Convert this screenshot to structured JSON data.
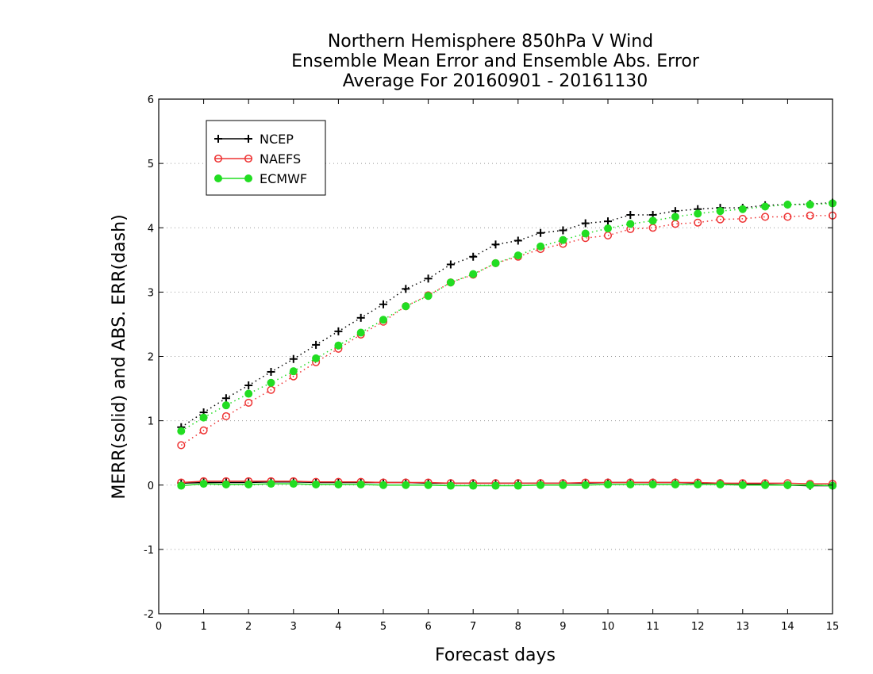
{
  "chart_data": {
    "type": "line",
    "title_lines": [
      "Northern Hemisphere 850hPa V Wind",
      "Ensemble Mean Error and Ensemble Abs. Error",
      "Average For 20160901 - 20161130"
    ],
    "xlabel": "Forecast days",
    "ylabel": "MERR(solid) and ABS. ERR(dash)",
    "xlim": [
      0,
      15
    ],
    "ylim": [
      -2,
      6
    ],
    "x_ticks": [
      0,
      1,
      2,
      3,
      4,
      5,
      6,
      7,
      8,
      9,
      10,
      11,
      12,
      13,
      14,
      15
    ],
    "y_ticks": [
      -2,
      -1,
      0,
      1,
      2,
      3,
      4,
      5,
      6
    ],
    "y_tick_labels": [
      "-2",
      "-1",
      "0",
      "1",
      "2",
      "3",
      "4",
      "5",
      "6"
    ],
    "grid": "horizontal dotted",
    "legend_position": "top-left",
    "x": [
      0.5,
      1,
      1.5,
      2,
      2.5,
      3,
      3.5,
      4,
      4.5,
      5,
      5.5,
      6,
      6.5,
      7,
      7.5,
      8,
      8.5,
      9,
      9.5,
      10,
      10.5,
      11,
      11.5,
      12,
      12.5,
      13,
      13.5,
      14,
      14.5,
      15
    ],
    "series": [
      {
        "name": "NCEP",
        "color": "#000000",
        "marker": "plus",
        "abs_error": [
          0.9,
          1.13,
          1.35,
          1.55,
          1.76,
          1.96,
          2.18,
          2.39,
          2.6,
          2.81,
          3.05,
          3.21,
          3.43,
          3.55,
          3.74,
          3.8,
          3.92,
          3.96,
          4.07,
          4.1,
          4.2,
          4.2,
          4.26,
          4.29,
          4.31,
          4.31,
          4.35,
          4.36,
          4.37,
          4.39
        ],
        "mean_error": [
          0.03,
          0.04,
          0.04,
          0.04,
          0.05,
          0.05,
          0.04,
          0.04,
          0.04,
          0.04,
          0.04,
          0.03,
          0.03,
          0.03,
          0.03,
          0.03,
          0.03,
          0.03,
          0.03,
          0.04,
          0.04,
          0.04,
          0.04,
          0.03,
          0.03,
          0.02,
          0.01,
          0.0,
          -0.01,
          -0.01
        ]
      },
      {
        "name": "NAEFS",
        "color": "#ee3333",
        "marker": "open-circle",
        "abs_error": [
          0.62,
          0.85,
          1.07,
          1.28,
          1.48,
          1.69,
          1.91,
          2.12,
          2.34,
          2.54,
          2.78,
          2.95,
          3.15,
          3.27,
          3.45,
          3.55,
          3.67,
          3.75,
          3.84,
          3.88,
          3.98,
          4.0,
          4.06,
          4.08,
          4.13,
          4.14,
          4.17,
          4.17,
          4.19,
          4.19
        ],
        "mean_error": [
          0.04,
          0.06,
          0.06,
          0.06,
          0.06,
          0.06,
          0.05,
          0.05,
          0.05,
          0.04,
          0.04,
          0.04,
          0.03,
          0.03,
          0.03,
          0.03,
          0.03,
          0.03,
          0.04,
          0.04,
          0.04,
          0.04,
          0.04,
          0.04,
          0.03,
          0.03,
          0.03,
          0.03,
          0.02,
          0.02
        ]
      },
      {
        "name": "ECMWF",
        "color": "#22dd22",
        "marker": "filled-circle",
        "abs_error": [
          0.84,
          1.05,
          1.24,
          1.42,
          1.59,
          1.77,
          1.97,
          2.17,
          2.37,
          2.57,
          2.78,
          2.94,
          3.15,
          3.28,
          3.45,
          3.57,
          3.71,
          3.81,
          3.91,
          3.99,
          4.06,
          4.11,
          4.17,
          4.22,
          4.26,
          4.29,
          4.33,
          4.36,
          4.36,
          4.38
        ],
        "mean_error": [
          -0.01,
          0.02,
          0.01,
          0.01,
          0.02,
          0.02,
          0.01,
          0.01,
          0.01,
          0.0,
          0.0,
          0.0,
          -0.01,
          -0.01,
          -0.01,
          -0.01,
          0.0,
          0.0,
          0.0,
          0.01,
          0.01,
          0.01,
          0.01,
          0.01,
          0.01,
          0.0,
          0.0,
          0.0,
          0.0,
          -0.01
        ]
      }
    ]
  }
}
